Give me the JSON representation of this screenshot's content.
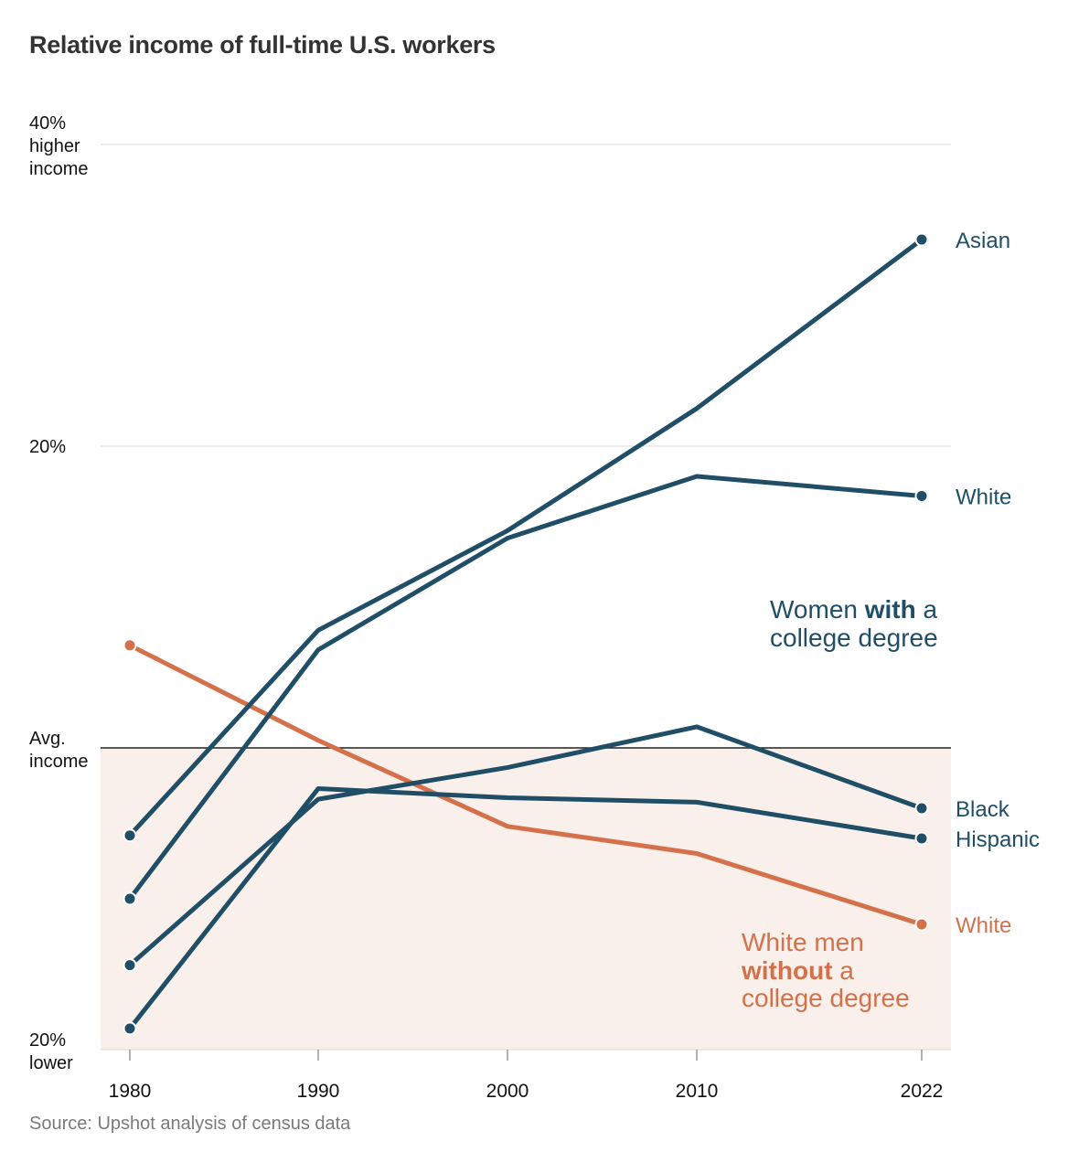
{
  "title": "Relative income of full-time U.S. workers",
  "source": "Source: Upshot analysis of census data",
  "colors": {
    "blue": "#1f4e66",
    "orange": "#d4714a",
    "band": "#f9efeb",
    "grid": "#d9d9d9",
    "baseline": "#222222",
    "tick_text": "#121212"
  },
  "chart_data": {
    "type": "line",
    "x": [
      1980,
      1990,
      2000,
      2010,
      2022
    ],
    "x_tick_labels": [
      "1980",
      "1990",
      "2000",
      "2010",
      "2022"
    ],
    "ylim": [
      -20,
      40
    ],
    "y_ticks": [
      {
        "value": 40,
        "lines": [
          "40%",
          "higher",
          "income"
        ]
      },
      {
        "value": 20,
        "lines": [
          "20%"
        ]
      },
      {
        "value": 0,
        "lines": [
          "Avg.",
          "income"
        ]
      },
      {
        "value": -20,
        "lines": [
          "20%",
          "lower"
        ]
      }
    ],
    "grid": true,
    "shaded_region": {
      "from": -20,
      "to": 0
    },
    "series": [
      {
        "name": "Asian",
        "group": "women",
        "values": [
          -5.8,
          7.8,
          14.4,
          22.5,
          33.7
        ]
      },
      {
        "name": "White",
        "group": "women",
        "values": [
          -10.0,
          6.5,
          13.9,
          18.0,
          16.7
        ]
      },
      {
        "name": "Black",
        "group": "women",
        "values": [
          -14.4,
          -3.4,
          -1.3,
          1.4,
          -4.0
        ]
      },
      {
        "name": "Hispanic",
        "group": "women",
        "values": [
          -18.6,
          -2.7,
          -3.3,
          -3.6,
          -6.0
        ]
      },
      {
        "name": "White",
        "group": "men",
        "values": [
          6.8,
          0.5,
          -5.2,
          -7.0,
          -11.7
        ]
      }
    ],
    "annotations": {
      "women": {
        "line1_pre": "Women ",
        "line1_bold": "with",
        "line1_post": " a",
        "line2": "college degree"
      },
      "men": {
        "line1": "White men",
        "line2_bold": "without",
        "line2_post": " a",
        "line3": "college degree"
      }
    }
  }
}
